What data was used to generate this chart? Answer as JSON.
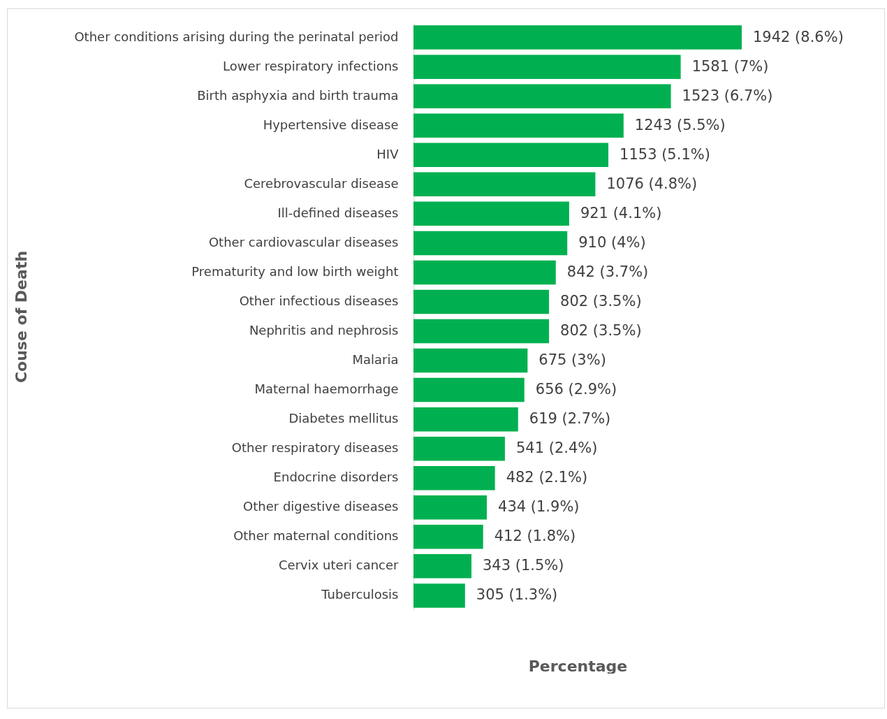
{
  "chart_data": {
    "type": "bar",
    "orientation": "horizontal",
    "xlabel": "Percentage",
    "ylabel": "Couse of Death",
    "tick_labels": "y",
    "color": "#00b050",
    "categories": [
      "Other conditions arising during the perinatal period",
      "Lower respiratory infections",
      "Birth asphyxia and birth trauma",
      "Hypertensive disease",
      "HIV",
      "Cerebrovascular disease",
      "Ill-defined diseases",
      "Other cardiovascular diseases",
      "Prematurity and low birth weight",
      "Other infectious diseases",
      "Nephritis and nephrosis",
      "Malaria",
      "Maternal haemorrhage",
      "Diabetes mellitus",
      "Other respiratory diseases",
      "Endocrine disorders",
      "Other digestive diseases",
      "Other maternal conditions",
      "Cervix uteri cancer",
      "Tuberculosis"
    ],
    "values": [
      1942,
      1581,
      1523,
      1243,
      1153,
      1076,
      921,
      910,
      842,
      802,
      802,
      675,
      656,
      619,
      541,
      482,
      434,
      412,
      343,
      305
    ],
    "value_labels": [
      "1942 (8.6%)",
      "1581 (7%)",
      "1523 (6.7%)",
      "1243 (5.5%)",
      "1153 (5.1%)",
      "1076 (4.8%)",
      "921 (4.1%)",
      "910 (4%)",
      "842 (3.7%)",
      "802 (3.5%)",
      "802 (3.5%)",
      "675 (3%)",
      "656 (2.9%)",
      "619 (2.7%)",
      "541 (2.4%)",
      "482 (2.1%)",
      "434 (1.9%)",
      "412 (1.8%)",
      "343 (1.5%)",
      "305 (1.3%)"
    ]
  }
}
